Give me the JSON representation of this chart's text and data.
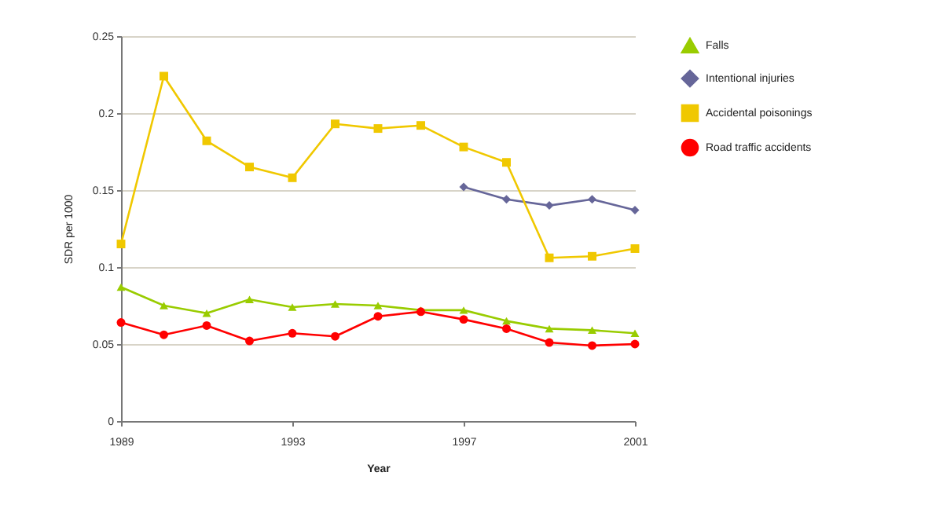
{
  "chart_data": {
    "type": "line",
    "xlabel": "Year",
    "ylabel": "SDR per 1000",
    "x": [
      1989,
      1990,
      1991,
      1992,
      1993,
      1994,
      1995,
      1996,
      1997,
      1998,
      1999,
      2000,
      2001
    ],
    "xlim": [
      1989,
      2001
    ],
    "xticks": [
      1989,
      1993,
      1997,
      2001
    ],
    "ylim": [
      0,
      0.25
    ],
    "yticks": [
      0,
      0.05,
      0.1,
      0.15,
      0.2,
      0.25
    ],
    "grid": "y",
    "legend": "right",
    "series": [
      {
        "name": "Falls",
        "color": "#99cc00",
        "marker": "triangle",
        "values": [
          0.087,
          0.075,
          0.07,
          0.079,
          0.074,
          0.076,
          0.075,
          0.072,
          0.072,
          0.065,
          0.06,
          0.059,
          0.057
        ]
      },
      {
        "name": "Intentional injuries",
        "color": "#666699",
        "marker": "diamond",
        "values": [
          null,
          null,
          null,
          null,
          null,
          null,
          null,
          null,
          0.152,
          0.144,
          0.14,
          0.144,
          0.137
        ]
      },
      {
        "name": "Accidental poisonings",
        "color": "#f0c800",
        "marker": "square",
        "values": [
          0.115,
          0.224,
          0.182,
          0.165,
          0.158,
          0.193,
          0.19,
          0.192,
          0.178,
          0.168,
          0.106,
          0.107,
          0.112
        ]
      },
      {
        "name": "Road traffic accidents",
        "color": "#ff0000",
        "marker": "circle",
        "values": [
          0.064,
          0.056,
          0.062,
          0.052,
          0.057,
          0.055,
          0.068,
          0.071,
          0.066,
          0.06,
          0.051,
          0.049,
          0.05
        ]
      }
    ]
  }
}
